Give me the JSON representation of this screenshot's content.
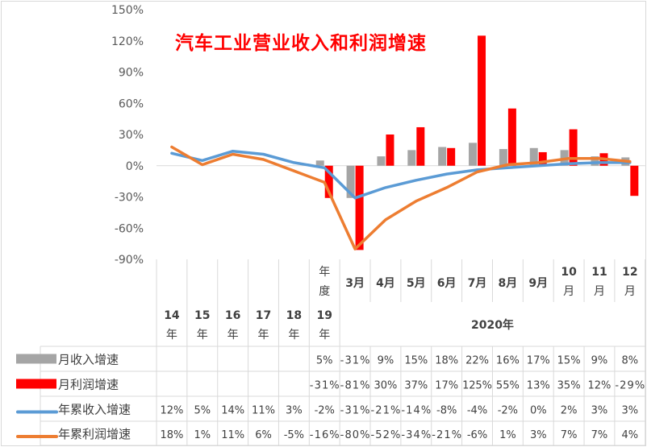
{
  "chart_data": {
    "type": "bar+line+table",
    "title": "汽车工业营业收入和利润增速",
    "ylim": [
      -90,
      150
    ],
    "yticks": [
      "150%",
      "120%",
      "90%",
      "60%",
      "30%",
      "0%",
      "-30%",
      "-60%",
      "-90%"
    ],
    "ytick_values": [
      150,
      120,
      90,
      60,
      30,
      0,
      -30,
      -60,
      -90
    ],
    "categories": [
      "14年",
      "15年",
      "16年",
      "17年",
      "18年",
      "19年度",
      "3月",
      "4月",
      "5月",
      "6月",
      "7月",
      "8月",
      "9月",
      "10月",
      "11月",
      "12月"
    ],
    "category_labels_top": [
      "",
      "",
      "",
      "",
      "",
      "年度",
      "3月",
      "4月",
      "5月",
      "6月",
      "7月",
      "8月",
      "9月",
      "10月",
      "11月",
      "12月"
    ],
    "category_labels_bottom": [
      "14年",
      "15年",
      "16年",
      "17年",
      "18年",
      "19年",
      "2020年"
    ],
    "series": [
      {
        "name": "月收入增速",
        "type": "bar",
        "color": "#a5a5a5",
        "values": [
          null,
          null,
          null,
          null,
          null,
          5,
          -31,
          9,
          15,
          18,
          22,
          16,
          17,
          15,
          9,
          8
        ]
      },
      {
        "name": "月利润增速",
        "type": "bar",
        "color": "#ff0000",
        "values": [
          null,
          null,
          null,
          null,
          null,
          -31,
          -81,
          30,
          37,
          17,
          125,
          55,
          13,
          35,
          12,
          -29
        ]
      },
      {
        "name": "年累收入增速",
        "type": "line",
        "color": "#5b9bd5",
        "values": [
          12,
          5,
          14,
          11,
          3,
          -2,
          -31,
          -21,
          -14,
          -8,
          -4,
          -2,
          0,
          2,
          3,
          3
        ]
      },
      {
        "name": "年累利润增速",
        "type": "line",
        "color": "#ed7d31",
        "values": [
          18,
          1,
          11,
          6,
          -5,
          -16,
          -80,
          -52,
          -34,
          -21,
          -6,
          1,
          3,
          7,
          7,
          4
        ]
      }
    ],
    "title_color": "#ff0000",
    "grid": false,
    "legend_placement": "data-table"
  }
}
